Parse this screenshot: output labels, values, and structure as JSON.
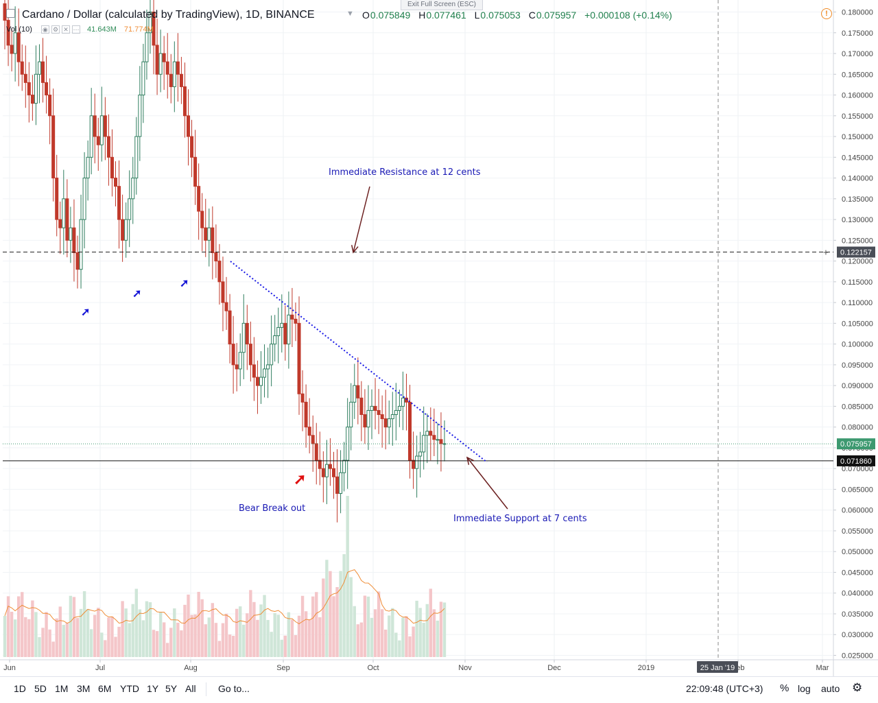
{
  "header": {
    "symbol_title": "Cardano / Dollar (calculated by TradingView), 1D, BINANCE",
    "ohlc": {
      "open_label": "O",
      "open": "0.075849",
      "high_label": "H",
      "high": "0.077461",
      "low_label": "L",
      "low": "0.075053",
      "close_label": "C",
      "close": "0.075957",
      "change": "+0.000108 (+0.14%)"
    },
    "volume_indicator": {
      "label": "Vol (10)",
      "value": "41.643M",
      "ma_value": "71.774M"
    },
    "exit_fullscreen": "Exit Full Screen (ESC)",
    "alert_icon": "alert-clock-icon"
  },
  "chart_data": {
    "type": "candlestick",
    "symbol": "ADAUSD",
    "interval": "1D",
    "exchange": "BINANCE",
    "x_axis_labels": [
      "Jun",
      "Jul",
      "Aug",
      "Sep",
      "Oct",
      "Nov",
      "Dec",
      "2019",
      "Feb",
      "Mar"
    ],
    "x_axis_highlight": "25 Jan '19",
    "y_axis_ticks": [
      "0.180000",
      "0.175000",
      "0.170000",
      "0.165000",
      "0.160000",
      "0.155000",
      "0.150000",
      "0.145000",
      "0.140000",
      "0.135000",
      "0.130000",
      "0.125000",
      "0.120000",
      "0.115000",
      "0.110000",
      "0.105000",
      "0.100000",
      "0.095000",
      "0.090000",
      "0.085000",
      "0.080000",
      "0.075000",
      "0.070000",
      "0.065000",
      "0.060000",
      "0.055000",
      "0.050000",
      "0.045000",
      "0.040000",
      "0.035000",
      "0.030000",
      "0.025000"
    ],
    "ylim": [
      0.0245,
      0.1815
    ],
    "price_labels": {
      "resistance": "0.122157",
      "current": "0.075957",
      "support": "0.071860"
    },
    "levels": {
      "resistance": 0.122157,
      "current": 0.075957,
      "support": 0.07186
    },
    "closes": [
      0.178,
      0.172,
      0.17,
      0.175,
      0.168,
      0.165,
      0.163,
      0.16,
      0.158,
      0.165,
      0.168,
      0.163,
      0.16,
      0.155,
      0.14,
      0.13,
      0.128,
      0.135,
      0.125,
      0.128,
      0.122,
      0.118,
      0.13,
      0.14,
      0.145,
      0.155,
      0.15,
      0.148,
      0.155,
      0.15,
      0.145,
      0.14,
      0.138,
      0.13,
      0.125,
      0.13,
      0.135,
      0.14,
      0.15,
      0.16,
      0.168,
      0.175,
      0.18,
      0.172,
      0.165,
      0.17,
      0.168,
      0.165,
      0.162,
      0.168,
      0.165,
      0.162,
      0.155,
      0.15,
      0.145,
      0.138,
      0.132,
      0.128,
      0.125,
      0.128,
      0.122,
      0.12,
      0.115,
      0.11,
      0.108,
      0.1,
      0.095,
      0.094,
      0.098,
      0.105,
      0.1,
      0.095,
      0.092,
      0.09,
      0.092,
      0.094,
      0.095,
      0.1,
      0.102,
      0.104,
      0.105,
      0.1,
      0.107,
      0.106,
      0.105,
      0.088,
      0.086,
      0.08,
      0.078,
      0.076,
      0.072,
      0.07,
      0.068,
      0.071,
      0.07,
      0.068,
      0.064,
      0.069,
      0.072,
      0.08,
      0.086,
      0.09,
      0.087,
      0.083,
      0.08,
      0.084,
      0.085,
      0.084,
      0.083,
      0.082,
      0.08,
      0.082,
      0.083,
      0.084,
      0.085,
      0.087,
      0.086,
      0.072,
      0.07,
      0.073,
      0.074,
      0.078,
      0.079,
      0.078,
      0.077,
      0.077,
      0.076,
      0.076
    ],
    "volume_ma_label": "Vol (10)",
    "annotations": {
      "resistance": "Immediate Resistance at 12 cents",
      "support": "Immediate Support at 7 cents",
      "breakout": "Bear Break out"
    },
    "colors": {
      "up": "#2e7d5e",
      "down": "#c0392b",
      "vol_up": "#cfe6d8",
      "vol_down": "#f4c6c9",
      "trendline": "#1a1ae6",
      "annotation": "#1a1ab5",
      "arrow": "#6b1f1f",
      "vol_ma": "#ef8c35"
    }
  },
  "bottom_bar": {
    "ranges": [
      "1D",
      "5D",
      "1M",
      "3M",
      "6M",
      "YTD",
      "1Y",
      "5Y",
      "All"
    ],
    "goto": "Go to...",
    "clock": "22:09:48 (UTC+3)",
    "percent": "%",
    "log": "log",
    "auto": "auto",
    "settings_icon": "gear-icon"
  }
}
